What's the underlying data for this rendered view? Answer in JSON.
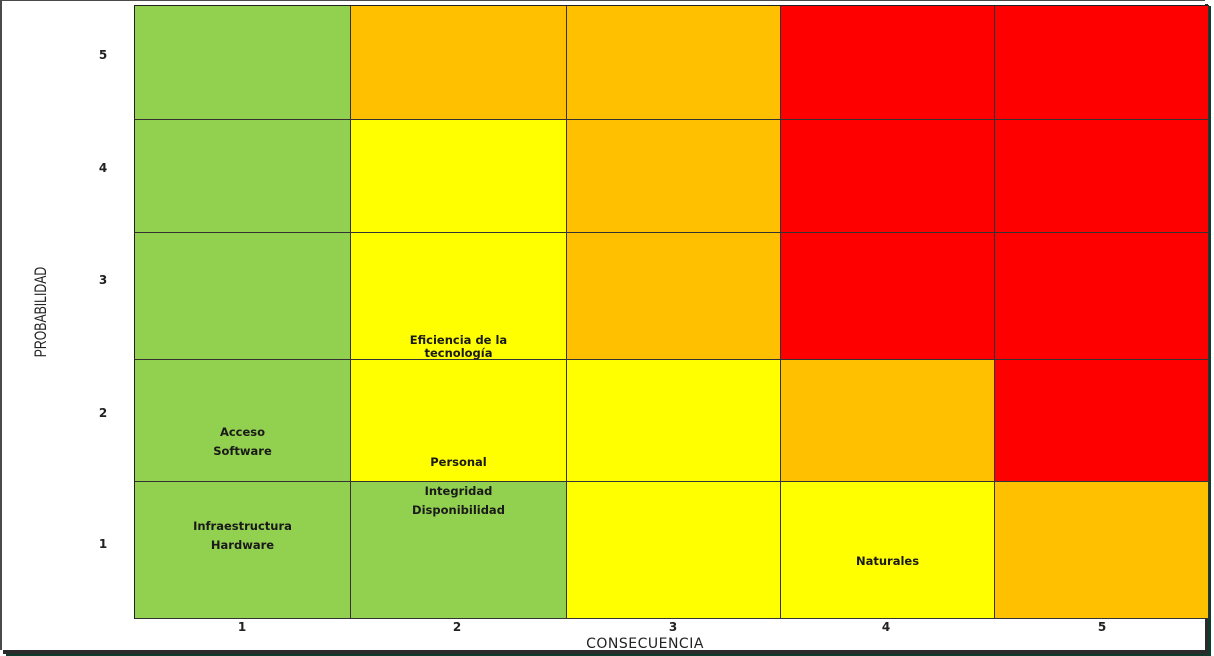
{
  "chart_data": {
    "type": "heatmap",
    "title": "",
    "xlabel": "CONSECUENCIA",
    "ylabel": "PROBABILIDAD",
    "x_categories": [
      "1",
      "2",
      "3",
      "4",
      "5"
    ],
    "y_categories": [
      "5",
      "4",
      "3",
      "2",
      "1"
    ],
    "colors": {
      "green": "#92d050",
      "yellow": "#ffff00",
      "orange": "#ffc000",
      "red": "#ff0000"
    },
    "grid": [
      [
        "green",
        "orange",
        "orange",
        "red",
        "red"
      ],
      [
        "green",
        "yellow",
        "orange",
        "red",
        "red"
      ],
      [
        "green",
        "yellow",
        "orange",
        "red",
        "red"
      ],
      [
        "green",
        "yellow",
        "yellow",
        "orange",
        "red"
      ],
      [
        "green",
        "green",
        "yellow",
        "yellow",
        "orange"
      ]
    ],
    "risks": [
      {
        "consecuencia": "2",
        "probabilidad": "3",
        "lines": [
          "Eficiencia de la",
          "tecnología"
        ]
      },
      {
        "consecuencia": "1",
        "probabilidad": "2",
        "lines": [
          "Acceso",
          "Software"
        ]
      },
      {
        "consecuencia": "2",
        "probabilidad": "2",
        "lines": [
          "Personal"
        ]
      },
      {
        "consecuencia": "1",
        "probabilidad": "1",
        "lines": [
          "Infraestructura",
          "Hardware"
        ]
      },
      {
        "consecuencia": "2",
        "probabilidad": "1",
        "lines": [
          "Integridad",
          "Disponibilidad"
        ]
      },
      {
        "consecuencia": "4",
        "probabilidad": "1",
        "lines": [
          "Naturales"
        ]
      }
    ]
  }
}
